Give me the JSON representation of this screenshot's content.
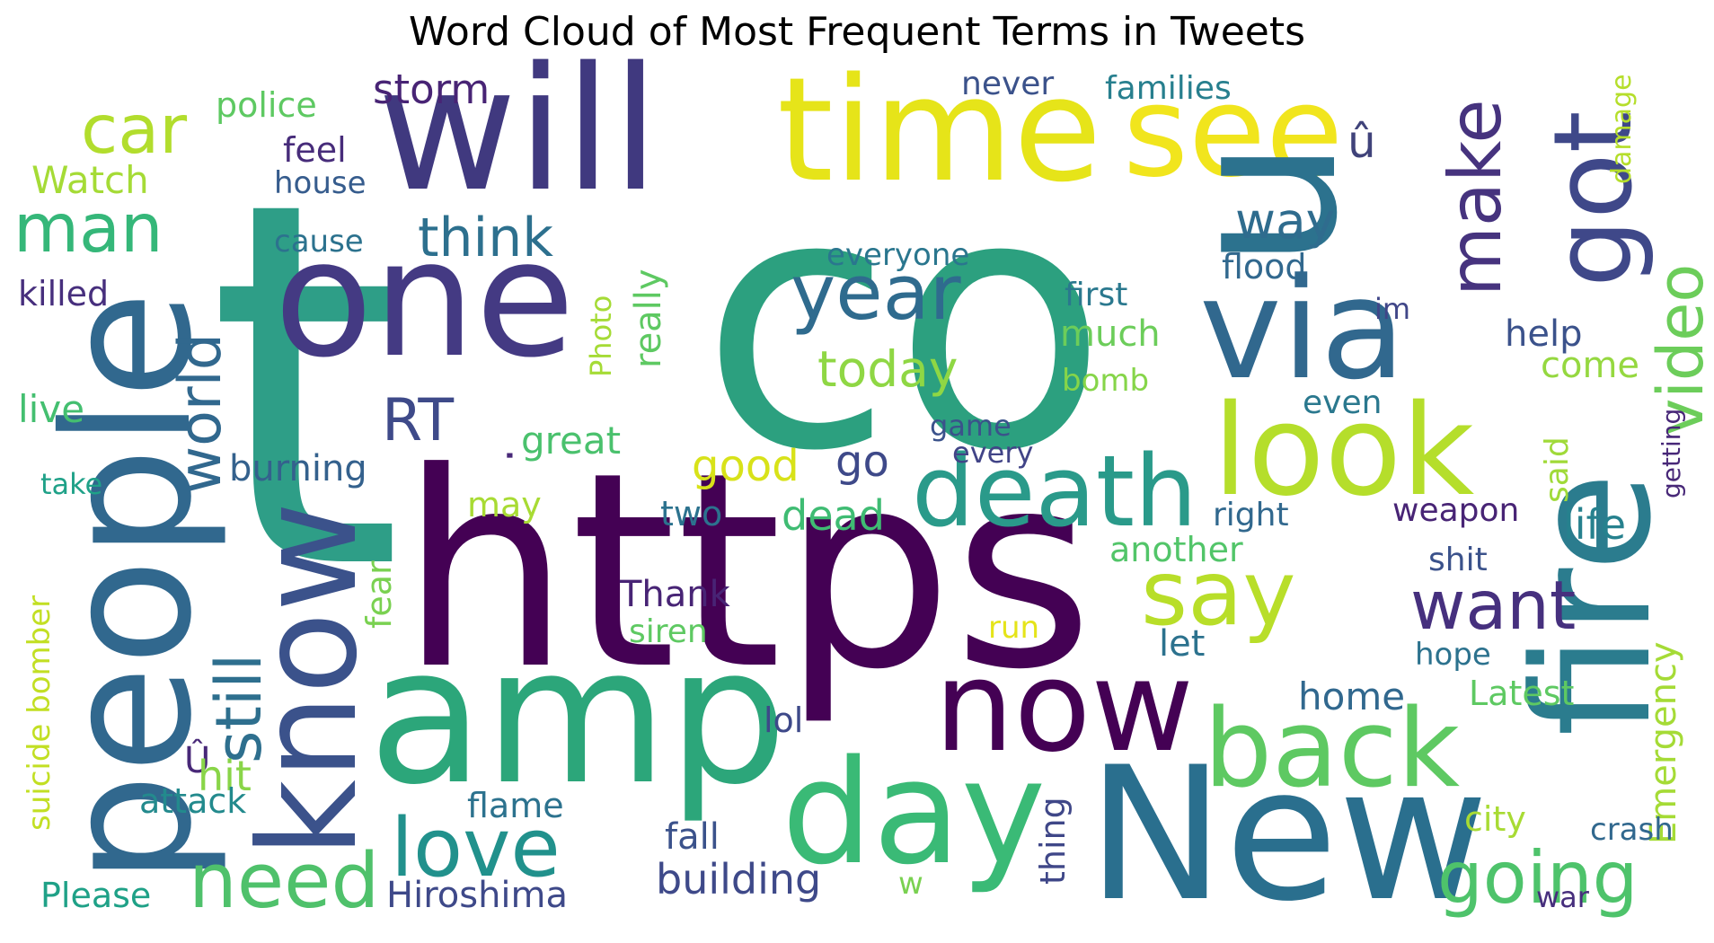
{
  "title": "Word Cloud of Most Frequent Terms in Tweets",
  "colors": {
    "background": "#ffffff",
    "title": "#000000",
    "colormap": "viridis"
  },
  "words": [
    {
      "text": "t",
      "color": "#2e9e87"
    },
    {
      "text": "co",
      "color": "#2ca07f"
    },
    {
      "text": "https",
      "color": "#440154"
    },
    {
      "text": "amp",
      "color": "#2ca67a"
    },
    {
      "text": "New",
      "color": "#2a6f8e"
    },
    {
      "text": "will",
      "color": "#40397f"
    },
    {
      "text": "one",
      "color": "#443a83"
    },
    {
      "text": "people",
      "color": "#31688e"
    },
    {
      "text": "time",
      "color": "#e6e419"
    },
    {
      "text": "see",
      "color": "#f1e51d"
    },
    {
      "text": "u",
      "color": "#2c728e"
    },
    {
      "text": "via",
      "color": "#31688e"
    },
    {
      "text": "fire",
      "color": "#2b7c8e"
    },
    {
      "text": "look",
      "color": "#b5de2b"
    },
    {
      "text": "know",
      "color": "#3b528b"
    },
    {
      "text": "day",
      "color": "#3aba76"
    },
    {
      "text": "now",
      "color": "#440154"
    },
    {
      "text": "back",
      "color": "#5ec962"
    },
    {
      "text": "death",
      "color": "#2a9a8a"
    },
    {
      "text": "got",
      "color": "#3f4889"
    },
    {
      "text": "say",
      "color": "#b8de29"
    },
    {
      "text": "love",
      "color": "#21918c"
    },
    {
      "text": "need",
      "color": "#4fc16b"
    },
    {
      "text": "going",
      "color": "#4ec36b"
    },
    {
      "text": "video",
      "color": "#6ccd5a"
    },
    {
      "text": "make",
      "color": "#46337e"
    },
    {
      "text": "man",
      "color": "#35b779"
    },
    {
      "text": "car",
      "color": "#b2dd2d"
    },
    {
      "text": "û",
      "color": "#40437a"
    },
    {
      "text": "year",
      "color": "#2f6b8e"
    },
    {
      "text": "still",
      "color": "#2e6f8e"
    },
    {
      "text": "world",
      "color": "#31688e"
    },
    {
      "text": "want",
      "color": "#46307e"
    },
    {
      "text": "RT",
      "color": "#3e4a89"
    },
    {
      "text": "today",
      "color": "#8fd744"
    },
    {
      "text": "think",
      "color": "#2d708e"
    },
    {
      "text": "way",
      "color": "#2f6c8e"
    },
    {
      "text": "Watch",
      "color": "#a5db36"
    },
    {
      "text": "police",
      "color": "#5ec962"
    },
    {
      "text": "storm",
      "color": "#482475"
    },
    {
      "text": "never",
      "color": "#3b528b"
    },
    {
      "text": "families",
      "color": "#277f8e"
    },
    {
      "text": "feel",
      "color": "#472c7a"
    },
    {
      "text": "house",
      "color": "#365c8d"
    },
    {
      "text": "cause",
      "color": "#2c728e"
    },
    {
      "text": "killed",
      "color": "#472f7d"
    },
    {
      "text": "everyone",
      "color": "#2a768e"
    },
    {
      "text": "flood",
      "color": "#31688e"
    },
    {
      "text": "first",
      "color": "#2a788e"
    },
    {
      "text": "much",
      "color": "#6ccd5a"
    },
    {
      "text": "bomb",
      "color": "#86d549"
    },
    {
      "text": "im",
      "color": "#404688"
    },
    {
      "text": "help",
      "color": "#3b528b"
    },
    {
      "text": "come",
      "color": "#95d840"
    },
    {
      "text": "even",
      "color": "#2a788e"
    },
    {
      "text": "live",
      "color": "#44bf70"
    },
    {
      "text": "take",
      "color": "#1fa188"
    },
    {
      "text": "Photo",
      "color": "#a5db36"
    },
    {
      "text": "really",
      "color": "#5ec962"
    },
    {
      "text": "burning",
      "color": "#34618d"
    },
    {
      "text": "great",
      "color": "#4ac16d"
    },
    {
      "text": "game",
      "color": "#3b528b"
    },
    {
      "text": "every",
      "color": "#414487"
    },
    {
      "text": "good",
      "color": "#d8e219"
    },
    {
      "text": "go",
      "color": "#3e4989"
    },
    {
      "text": "may",
      "color": "#a8db34"
    },
    {
      "text": "two",
      "color": "#2c728e"
    },
    {
      "text": "dead",
      "color": "#3fbc73"
    },
    {
      "text": "right",
      "color": "#31688e"
    },
    {
      "text": "weapon",
      "color": "#482475"
    },
    {
      "text": "life",
      "color": "#26818e"
    },
    {
      "text": "another",
      "color": "#52c569"
    },
    {
      "text": "shit",
      "color": "#3b528b"
    },
    {
      "text": "said",
      "color": "#a0da39"
    },
    {
      "text": "damage",
      "color": "#b5de2b"
    },
    {
      "text": "getting",
      "color": "#482878"
    },
    {
      "text": "suicide bomber",
      "color": "#c2df23"
    },
    {
      "text": "fear",
      "color": "#7ad151"
    },
    {
      "text": "Thank",
      "color": "#482475"
    },
    {
      "text": "siren",
      "color": "#5ec962"
    },
    {
      "text": "run",
      "color": "#e5e419"
    },
    {
      "text": "let",
      "color": "#2c728e"
    },
    {
      "text": "hope",
      "color": "#2c728e"
    },
    {
      "text": "home",
      "color": "#31688e"
    },
    {
      "text": "Latest",
      "color": "#5ec962"
    },
    {
      "text": "lol",
      "color": "#3e4989"
    },
    {
      "text": "Emergency",
      "color": "#a5db36"
    },
    {
      "text": "Û",
      "color": "#482878"
    },
    {
      "text": "hit",
      "color": "#89d548"
    },
    {
      "text": "attack",
      "color": "#238a8d"
    },
    {
      "text": "flame",
      "color": "#2c728e"
    },
    {
      "text": "thing",
      "color": "#3f4788"
    },
    {
      "text": "city",
      "color": "#a8db34"
    },
    {
      "text": "crash",
      "color": "#31688e"
    },
    {
      "text": "fall",
      "color": "#3b528b"
    },
    {
      "text": "building",
      "color": "#3e4989"
    },
    {
      "text": "w",
      "color": "#7ad151"
    },
    {
      "text": "Hiroshima",
      "color": "#3e4989"
    },
    {
      "text": "Please",
      "color": "#1fa187"
    },
    {
      "text": "war",
      "color": "#472f7d"
    },
    {
      "text": "·",
      "color": "#482878"
    }
  ]
}
